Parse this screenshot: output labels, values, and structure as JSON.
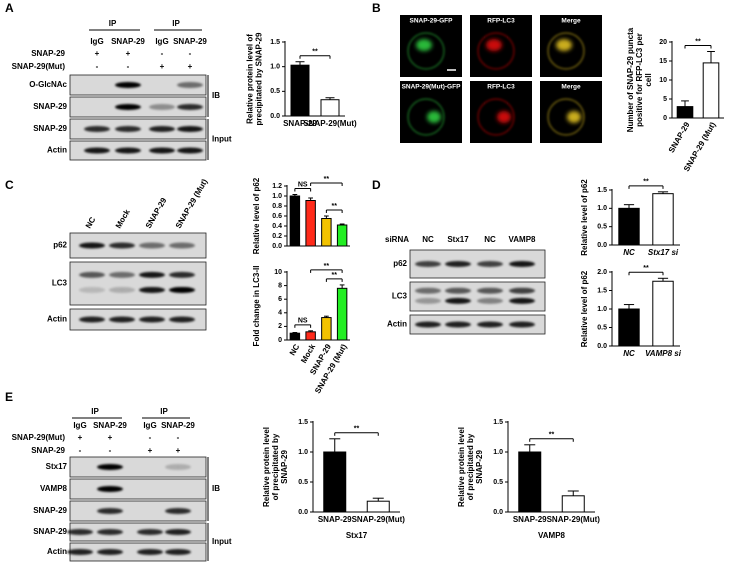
{
  "chart_data": [
    {
      "type": "bar",
      "y_label": "Relative protein level of precipitated by SNAP-29",
      "categories": [
        "SNAP-29",
        "SNAP-29(Mut)"
      ],
      "values": [
        1.03,
        0.33
      ],
      "errors": [
        0.07,
        0.04
      ],
      "colors": [
        "#000000",
        "#ffffff"
      ],
      "ylim": [
        0,
        1.5
      ],
      "yticks": [
        {
          "value": 0,
          "label": "0.0"
        },
        0.5,
        {
          "value": 1,
          "label": "1.0"
        },
        1.5
      ],
      "annotations": [
        "**"
      ]
    },
    {
      "type": "bar",
      "y_label": "Number of SNAP-29 puncta positive for RFP-LC3 per cell",
      "categories": [
        "SNAP-29",
        "SNAP-29 (Mut)"
      ],
      "values": [
        3,
        14.5
      ],
      "errors": [
        1.5,
        3
      ],
      "colors": [
        "#000000",
        "#ffffff"
      ],
      "ylim": [
        0,
        20
      ],
      "yticks": [
        0,
        5,
        10,
        15,
        20
      ],
      "annotations": [
        "**"
      ]
    },
    {
      "type": "bar",
      "y_label": "Relative level of p62",
      "values": [
        1.0,
        0.91,
        0.55,
        0.42
      ],
      "errors": [
        0.03,
        0.05,
        0.05,
        0.02
      ],
      "colors": [
        "#000000",
        "#ff2a1a",
        "#f2c200",
        "#22ee22"
      ],
      "ylim": [
        0,
        1.2
      ],
      "yticks": [
        {
          "value": 0,
          "label": "0.0"
        },
        0.2,
        0.4,
        0.6,
        0.8,
        {
          "value": 1,
          "label": "1.0"
        },
        1.2
      ],
      "annotations": [
        "NS",
        "**",
        "**"
      ]
    },
    {
      "type": "bar",
      "y_label": "Fold change in LC3-II",
      "categories": [
        "NC",
        "Mock",
        "SNAP-29",
        "SNAP-29 (Mut)"
      ],
      "values": [
        1.0,
        1.2,
        3.3,
        7.6
      ],
      "errors": [
        0.1,
        0.15,
        0.2,
        0.5
      ],
      "colors": [
        "#000000",
        "#ff2a1a",
        "#f2c200",
        "#22ee22"
      ],
      "ylim": [
        0,
        10
      ],
      "yticks": [
        0,
        2,
        4,
        6,
        8,
        10
      ],
      "annotations": [
        "NS",
        "**",
        "**"
      ]
    },
    {
      "type": "bar",
      "y_label": "Relative level of p62",
      "categories": [
        "NC",
        "Stx17 si"
      ],
      "values": [
        1.0,
        1.4
      ],
      "errors": [
        0.1,
        0.05
      ],
      "colors": [
        "#000000",
        "#ffffff"
      ],
      "ylim": [
        0,
        1.5
      ],
      "yticks": [
        {
          "value": 0,
          "label": "0.0"
        },
        0.5,
        {
          "value": 1,
          "label": "1.0"
        },
        1.5
      ],
      "annotations": [
        "**"
      ]
    },
    {
      "type": "bar",
      "y_label": "Relative level of p62",
      "categories": [
        "NC",
        "VAMP8 si"
      ],
      "values": [
        1.0,
        1.75
      ],
      "errors": [
        0.12,
        0.08
      ],
      "colors": [
        "#000000",
        "#ffffff"
      ],
      "ylim": [
        0,
        2
      ],
      "yticks": [
        {
          "value": 0,
          "label": "0.0"
        },
        0.5,
        {
          "value": 1,
          "label": "1.0"
        },
        1.5,
        {
          "value": 2,
          "label": "2.0"
        }
      ],
      "annotations": [
        "**"
      ]
    },
    {
      "type": "bar",
      "y_label": "Relative protein level of precipitated by SNAP-29",
      "x_label": "Stx17",
      "categories": [
        "SNAP-29",
        "SNAP-29(Mut)"
      ],
      "values": [
        1.0,
        0.18
      ],
      "errors": [
        0.22,
        0.05
      ],
      "colors": [
        "#000000",
        "#ffffff"
      ],
      "ylim": [
        0,
        1.5
      ],
      "yticks": [
        {
          "value": 0,
          "label": "0.0"
        },
        0.5,
        {
          "value": 1,
          "label": "1.0"
        },
        1.5
      ],
      "annotations": [
        "**"
      ]
    },
    {
      "type": "bar",
      "y_label": "Relative protein level of precipitated by SNAP-29",
      "x_label": "VAMP8",
      "categories": [
        "SNAP-29",
        "SNAP-29(Mut)"
      ],
      "values": [
        1.0,
        0.27
      ],
      "errors": [
        0.12,
        0.08
      ],
      "colors": [
        "#000000",
        "#ffffff"
      ],
      "ylim": [
        0,
        1.5
      ],
      "yticks": [
        {
          "value": 0,
          "label": "0.0"
        },
        0.5,
        {
          "value": 1,
          "label": "1.0"
        },
        1.5
      ],
      "annotations": [
        "**"
      ]
    }
  ],
  "panel_a": {
    "letter": "A",
    "ip_labels": [
      "IP",
      "IP"
    ],
    "lanes": [
      "IgG",
      "SNAP-29",
      "IgG",
      "SNAP-29"
    ],
    "conditions": [
      {
        "label": "SNAP-29",
        "signs": [
          "+",
          "+",
          "-",
          "-"
        ]
      },
      {
        "label": "SNAP-29(Mut)",
        "signs": [
          "-",
          "-",
          "+",
          "+"
        ]
      }
    ],
    "blots": [
      "O-GlcNAc",
      "SNAP-29",
      "SNAP-29",
      "Actin"
    ],
    "groups": [
      "IB",
      "Input"
    ]
  },
  "panel_b": {
    "letter": "B",
    "images": [
      "SNAP-29-GFP",
      "RFP-LC3",
      "Merge",
      "SNAP-29(Mut)-GFP",
      "RFP-LC3",
      "Merge"
    ]
  },
  "panel_c": {
    "letter": "C",
    "lanes": [
      "NC",
      "Mock",
      "SNAP-29",
      "SNAP-29 (Mut)"
    ],
    "blots": [
      "p62",
      "LC3",
      "Actin"
    ]
  },
  "panel_d": {
    "letter": "D",
    "condition": "siRNA",
    "lanes": [
      "NC",
      "Stx17",
      "NC",
      "VAMP8"
    ],
    "blots": [
      "p62",
      "LC3",
      "Actin"
    ]
  },
  "panel_e": {
    "letter": "E",
    "ip_labels": [
      "IP",
      "IP"
    ],
    "lanes": [
      "IgG",
      "SNAP-29",
      "IgG",
      "SNAP-29"
    ],
    "conditions": [
      {
        "label": "SNAP-29(Mut)",
        "signs": [
          "+",
          "+",
          "-",
          "-"
        ]
      },
      {
        "label": "SNAP-29",
        "signs": [
          "-",
          "-",
          "+",
          "+"
        ]
      }
    ],
    "blots": [
      "Stx17",
      "VAMP8",
      "SNAP-29",
      "SNAP-29",
      "Actin"
    ],
    "groups": [
      "IB",
      "Input"
    ]
  }
}
